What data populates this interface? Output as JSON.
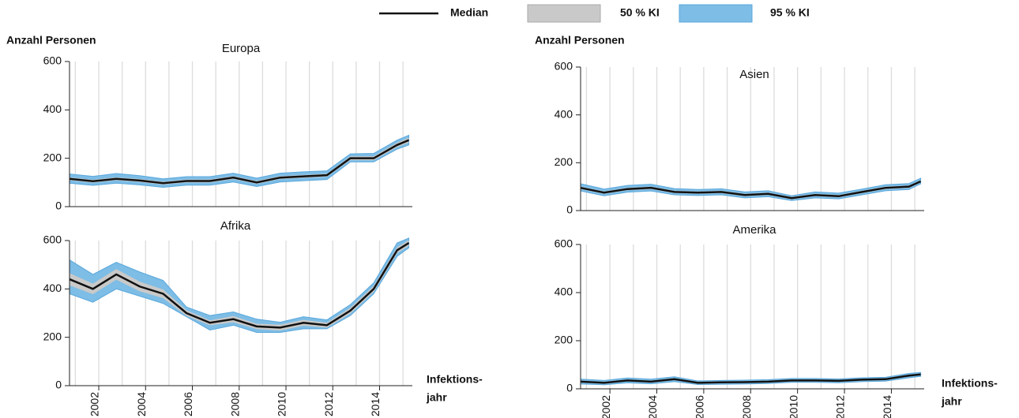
{
  "legend": [
    {
      "name": "Median",
      "color": "#111111"
    },
    {
      "name": "50 % KI",
      "color": "#c9c9c9"
    },
    {
      "name": "95 % KI",
      "color": "#7dbde6"
    }
  ],
  "chart_data": [
    {
      "type": "line",
      "title": "Europa",
      "ylabel": "Anzahl Personen",
      "x": [
        2000.75,
        2001.75,
        2002.75,
        2003.75,
        2004.75,
        2005.75,
        2006.75,
        2007.75,
        2008.75,
        2009.75,
        2010.75,
        2011.75,
        2012.75,
        2013.75,
        2014.75,
        2015.25
      ],
      "median": [
        115,
        105,
        115,
        108,
        97,
        106,
        106,
        120,
        100,
        120,
        125,
        130,
        200,
        200,
        255,
        275
      ],
      "ci50": {
        "lower": [
          109,
          99,
          109,
          102,
          91,
          100,
          100,
          114,
          94,
          114,
          119,
          124,
          192,
          192,
          246,
          265
        ],
        "upper": [
          121,
          111,
          121,
          114,
          103,
          112,
          112,
          126,
          106,
          126,
          131,
          136,
          208,
          208,
          264,
          285
        ]
      },
      "ci95": {
        "lower": [
          97,
          88,
          97,
          90,
          80,
          89,
          89,
          102,
          83,
          102,
          107,
          112,
          185,
          185,
          238,
          255
        ],
        "upper": [
          135,
          125,
          137,
          128,
          115,
          124,
          124,
          138,
          118,
          138,
          144,
          148,
          218,
          220,
          275,
          295
        ]
      },
      "xlim": [
        2000.75,
        2015.4
      ],
      "ylim": [
        0,
        600
      ],
      "yticks": [
        0,
        200,
        400,
        600
      ],
      "xgrid": [
        2001,
        2002,
        2003,
        2004,
        2005,
        2006,
        2007,
        2008,
        2009,
        2010,
        2011,
        2012,
        2013,
        2014,
        2015
      ]
    },
    {
      "type": "line",
      "title": "Afrika",
      "xlabel": [
        "Infektions-",
        "jahr"
      ],
      "x": [
        2000.75,
        2001.75,
        2002.75,
        2003.75,
        2004.75,
        2005.75,
        2006.75,
        2007.75,
        2008.75,
        2009.75,
        2010.75,
        2011.75,
        2012.75,
        2013.75,
        2014.75,
        2015.25
      ],
      "median": [
        440,
        400,
        460,
        410,
        380,
        300,
        260,
        275,
        245,
        240,
        260,
        250,
        310,
        400,
        560,
        590
      ],
      "ci50": {
        "lower": [
          415,
          378,
          438,
          390,
          362,
          288,
          250,
          262,
          234,
          228,
          248,
          240,
          298,
          388,
          548,
          578
        ],
        "upper": [
          465,
          422,
          482,
          430,
          398,
          312,
          270,
          288,
          256,
          252,
          272,
          260,
          322,
          412,
          572,
          602
        ]
      },
      "ci95": {
        "lower": [
          380,
          345,
          400,
          370,
          340,
          285,
          230,
          250,
          220,
          220,
          235,
          235,
          290,
          380,
          535,
          570
        ],
        "upper": [
          520,
          460,
          510,
          470,
          435,
          325,
          290,
          305,
          275,
          262,
          285,
          272,
          335,
          425,
          590,
          610
        ]
      },
      "xlim": [
        2000.75,
        2015.4
      ],
      "ylim": [
        0,
        600
      ],
      "yticks": [
        0,
        200,
        400,
        600
      ],
      "xticks": [
        2002,
        2004,
        2006,
        2008,
        2010,
        2012,
        2014
      ],
      "xgrid": [
        2001,
        2002,
        2003,
        2004,
        2005,
        2006,
        2007,
        2008,
        2009,
        2010,
        2011,
        2012,
        2013,
        2014,
        2015
      ]
    },
    {
      "type": "line",
      "title": "Asien",
      "ylabel": "Anzahl Personen",
      "x": [
        2000.75,
        2001.75,
        2002.75,
        2003.75,
        2004.75,
        2005.75,
        2006.75,
        2007.75,
        2008.75,
        2009.75,
        2010.75,
        2011.75,
        2012.75,
        2013.75,
        2014.75,
        2015.25
      ],
      "median": [
        95,
        75,
        90,
        95,
        78,
        75,
        78,
        65,
        70,
        52,
        65,
        60,
        78,
        95,
        100,
        122
      ],
      "ci50": {
        "lower": [
          90,
          70,
          85,
          90,
          73,
          70,
          73,
          60,
          65,
          47,
          60,
          55,
          73,
          90,
          95,
          117
        ],
        "upper": [
          100,
          80,
          95,
          100,
          83,
          80,
          83,
          70,
          75,
          57,
          70,
          65,
          83,
          100,
          105,
          127
        ]
      },
      "ci95": {
        "lower": [
          82,
          62,
          77,
          82,
          66,
          63,
          66,
          53,
          58,
          42,
          53,
          49,
          66,
          83,
          88,
          112
        ],
        "upper": [
          112,
          90,
          105,
          110,
          92,
          88,
          91,
          78,
          83,
          62,
          78,
          73,
          90,
          108,
          113,
          135
        ]
      },
      "xlim": [
        2000.75,
        2015.4
      ],
      "ylim": [
        0,
        600
      ],
      "yticks": [
        0,
        200,
        400,
        600
      ],
      "xgrid": [
        2001,
        2002,
        2003,
        2004,
        2005,
        2006,
        2007,
        2008,
        2009,
        2010,
        2011,
        2012,
        2013,
        2014,
        2015
      ]
    },
    {
      "type": "line",
      "title": "Amerika",
      "xlabel": [
        "Infektions-",
        "jahr"
      ],
      "x": [
        2000.75,
        2001.75,
        2002.75,
        2003.75,
        2004.75,
        2005.75,
        2006.75,
        2007.75,
        2008.75,
        2009.75,
        2010.75,
        2011.75,
        2012.75,
        2013.75,
        2014.75,
        2015.25
      ],
      "median": [
        30,
        25,
        35,
        30,
        40,
        25,
        27,
        28,
        30,
        35,
        35,
        33,
        38,
        40,
        55,
        60
      ],
      "ci50": {
        "lower": [
          26,
          21,
          31,
          26,
          36,
          21,
          23,
          24,
          26,
          31,
          31,
          29,
          34,
          36,
          51,
          56
        ],
        "upper": [
          34,
          29,
          39,
          34,
          44,
          29,
          31,
          32,
          34,
          39,
          39,
          37,
          42,
          44,
          59,
          64
        ]
      },
      "ci95": {
        "lower": [
          20,
          17,
          25,
          21,
          30,
          18,
          19,
          20,
          22,
          27,
          27,
          25,
          30,
          32,
          46,
          52
        ],
        "upper": [
          40,
          35,
          45,
          40,
          50,
          33,
          35,
          36,
          38,
          43,
          43,
          41,
          46,
          48,
          64,
          68
        ]
      },
      "xlim": [
        2000.75,
        2015.4
      ],
      "ylim": [
        0,
        600
      ],
      "yticks": [
        0,
        200,
        400,
        600
      ],
      "xticks": [
        2002,
        2004,
        2006,
        2008,
        2010,
        2012,
        2014
      ],
      "xgrid": [
        2001,
        2002,
        2003,
        2004,
        2005,
        2006,
        2007,
        2008,
        2009,
        2010,
        2011,
        2012,
        2013,
        2014,
        2015
      ]
    }
  ]
}
